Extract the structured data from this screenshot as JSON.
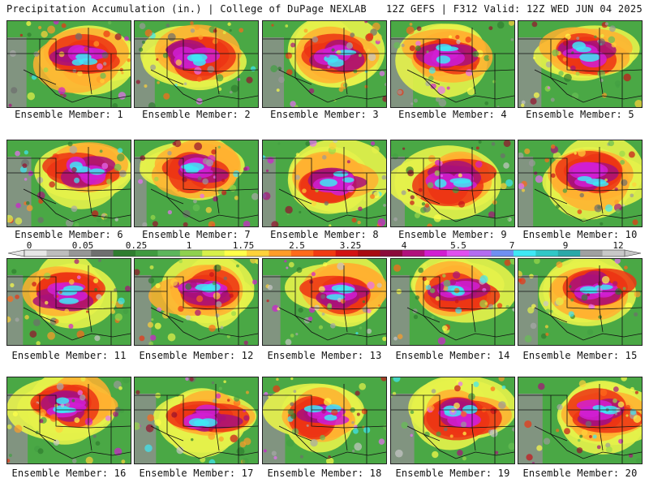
{
  "header": {
    "left": "Precipitation Accumulation (in.) | College of DuPage NEXLAB",
    "right": "12Z GEFS | F312 Valid: 12Z WED JUN 04 2025"
  },
  "colorbar": {
    "labels": [
      "0",
      "0.05",
      "0.25",
      "1",
      "1.75",
      "2.5",
      "3.25",
      "4",
      "5.5",
      "7",
      "9",
      "12"
    ],
    "colors": [
      "#e6e6e6",
      "#bdbdbd",
      "#969696",
      "#6f6f6f",
      "#2f7d2f",
      "#3f9a3f",
      "#5cb65c",
      "#8fd14f",
      "#d8f04a",
      "#ffff4a",
      "#ffd23a",
      "#ff9c28",
      "#ff6a1a",
      "#f23a12",
      "#d21212",
      "#a80b10",
      "#8a0a3a",
      "#b0107c",
      "#d11ed2",
      "#e04ff0",
      "#b36cf0",
      "#6f8ff2",
      "#3fe8f5",
      "#30c7c7",
      "#2aa8a8",
      "#a0a0a0",
      "#c8c8c8"
    ]
  },
  "panels": [
    {
      "label": "Ensemble Member: 1"
    },
    {
      "label": "Ensemble Member: 2"
    },
    {
      "label": "Ensemble Member: 3"
    },
    {
      "label": "Ensemble Member: 4"
    },
    {
      "label": "Ensemble Member: 5"
    },
    {
      "label": "Ensemble Member: 6"
    },
    {
      "label": "Ensemble Member: 7"
    },
    {
      "label": "Ensemble Member: 8"
    },
    {
      "label": "Ensemble Member: 9"
    },
    {
      "label": "Ensemble Member: 10"
    },
    {
      "label": "Ensemble Member: 11"
    },
    {
      "label": "Ensemble Member: 12"
    },
    {
      "label": "Ensemble Member: 13"
    },
    {
      "label": "Ensemble Member: 14"
    },
    {
      "label": "Ensemble Member: 15"
    },
    {
      "label": "Ensemble Member: 16"
    },
    {
      "label": "Ensemble Member: 17"
    },
    {
      "label": "Ensemble Member: 18"
    },
    {
      "label": "Ensemble Member: 19"
    },
    {
      "label": "Ensemble Member: 20"
    }
  ]
}
